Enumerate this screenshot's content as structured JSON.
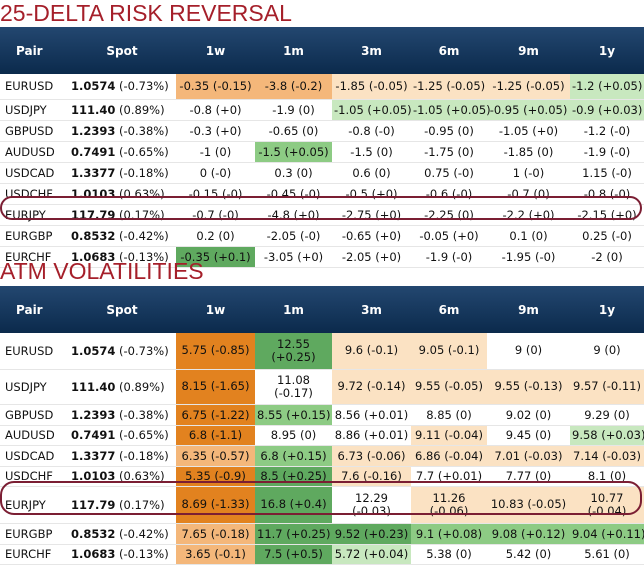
{
  "colors": {
    "title": "#a51f2a",
    "header_bg": "#0b2a4c",
    "highlight_ring": "#7b1e33",
    "orange_dark": "#e2821f",
    "orange_mid": "#f4b77a",
    "orange_light": "#fbe2c3",
    "green_dark": "#5fa95f",
    "green_mid": "#8dcb84",
    "green_light": "#c8e8bf"
  },
  "chart_data": [
    {
      "type": "table",
      "title": "25-DELTA RISK REVERSAL",
      "columns": [
        "Pair",
        "Spot",
        "1w",
        "1m",
        "3m",
        "6m",
        "9m",
        "1y"
      ],
      "rows": [
        {
          "pair": "EURUSD",
          "spot": "1.0574",
          "spot_chg": "(-0.73%)",
          "cells": [
            "-0.35 (-0.15)",
            "-3.8 (-0.2)",
            "-1.85 (-0.05)",
            "-1.25 (-0.05)",
            "-1.25 (-0.05)",
            "-1.2 (+0.05)"
          ],
          "heat": [
            "om",
            "om",
            "ol",
            "ol",
            "ol",
            "gl"
          ]
        },
        {
          "pair": "USDJPY",
          "spot": "111.40",
          "spot_chg": "(0.89%)",
          "cells": [
            "-0.8 (+0)",
            "-1.9 (0)",
            "-1.05 (+0.05)",
            "-1.05 (+0.05)",
            "-0.95 (+0.05)",
            "-0.9 (+0.03)"
          ],
          "heat": [
            "",
            "",
            "gl",
            "gl",
            "gl",
            "gl"
          ]
        },
        {
          "pair": "GBPUSD",
          "spot": "1.2393",
          "spot_chg": "(-0.38%)",
          "cells": [
            "-0.3 (+0)",
            "-0.65 (0)",
            "-0.8 (-0)",
            "-0.95 (0)",
            "-1.05 (+0)",
            "-1.2 (-0)"
          ],
          "heat": [
            "",
            "",
            "",
            "",
            "",
            ""
          ]
        },
        {
          "pair": "AUDUSD",
          "spot": "0.7491",
          "spot_chg": "(-0.65%)",
          "cells": [
            "-1 (0)",
            "-1.5 (+0.05)",
            "-1.5 (0)",
            "-1.75 (0)",
            "-1.85 (0)",
            "-1.9 (-0)"
          ],
          "heat": [
            "",
            "gm",
            "",
            "",
            "",
            ""
          ]
        },
        {
          "pair": "USDCAD",
          "spot": "1.3377",
          "spot_chg": "(-0.18%)",
          "cells": [
            "0 (-0)",
            "0.3 (0)",
            "0.6 (0)",
            "0.75 (-0)",
            "1 (-0)",
            "1.15 (-0)"
          ],
          "heat": [
            "",
            "",
            "",
            "",
            "",
            ""
          ]
        },
        {
          "pair": "USDCHF",
          "spot": "1.0103",
          "spot_chg": "(0.63%)",
          "cells": [
            "-0.15 (-0)",
            "-0.45 (-0)",
            "-0.5 (+0)",
            "-0.6 (-0)",
            "-0.7 (0)",
            "-0.8 (-0)"
          ],
          "heat": [
            "",
            "",
            "",
            "",
            "",
            ""
          ]
        },
        {
          "pair": "EURJPY",
          "spot": "117.79",
          "spot_chg": "(0.17%)",
          "cells": [
            "-0.7 (-0)",
            "-4.8 (+0)",
            "-2.75 (+0)",
            "-2.25 (0)",
            "-2.2 (+0)",
            "-2.15 (+0)"
          ],
          "heat": [
            "",
            "",
            "",
            "",
            "",
            ""
          ]
        },
        {
          "pair": "EURGBP",
          "spot": "0.8532",
          "spot_chg": "(-0.42%)",
          "cells": [
            "0.2 (0)",
            "-2.05 (-0)",
            "-0.65 (+0)",
            "-0.05 (+0)",
            "0.1 (0)",
            "0.25 (-0)"
          ],
          "heat": [
            "",
            "",
            "",
            "",
            "",
            ""
          ]
        },
        {
          "pair": "EURCHF",
          "spot": "1.0683",
          "spot_chg": "(-0.13%)",
          "cells": [
            "-0.35 (+0.1)",
            "-3.05 (+0)",
            "-2.05 (+0)",
            "-1.9 (-0)",
            "-1.95 (-0)",
            "-2 (0)"
          ],
          "heat": [
            "gd",
            "",
            "",
            "",
            "",
            ""
          ]
        }
      ]
    },
    {
      "type": "table",
      "title": "ATM VOLATILITIES",
      "columns": [
        "Pair",
        "Spot",
        "1w",
        "1m",
        "3m",
        "6m",
        "9m",
        "1y"
      ],
      "rows": [
        {
          "pair": "EURUSD",
          "spot": "1.0574",
          "spot_chg": "(-0.73%)",
          "cells": [
            "5.75 (-0.85)",
            "12.55 (+0.25)",
            "9.6 (-0.1)",
            "9.05 (-0.1)",
            "9 (0)",
            "9 (0)"
          ],
          "heat": [
            "od",
            "gd",
            "ol",
            "ol",
            "",
            ""
          ]
        },
        {
          "pair": "USDJPY",
          "spot": "111.40",
          "spot_chg": "(0.89%)",
          "cells": [
            "8.15 (-1.65)",
            "11.08 (-0.17)",
            "9.72 (-0.14)",
            "9.55 (-0.05)",
            "9.55 (-0.13)",
            "9.57 (-0.11)"
          ],
          "heat": [
            "od",
            "",
            "ol",
            "ol",
            "ol",
            "ol"
          ]
        },
        {
          "pair": "GBPUSD",
          "spot": "1.2393",
          "spot_chg": "(-0.38%)",
          "cells": [
            "6.75 (-1.22)",
            "8.55 (+0.15)",
            "8.56 (+0.01)",
            "8.85 (0)",
            "9.02 (0)",
            "9.29 (0)"
          ],
          "heat": [
            "od",
            "gm",
            "",
            "",
            "",
            ""
          ]
        },
        {
          "pair": "AUDUSD",
          "spot": "0.7491",
          "spot_chg": "(-0.65%)",
          "cells": [
            "6.8 (-1.1)",
            "8.95 (0)",
            "8.86 (+0.01)",
            "9.11 (-0.04)",
            "9.45 (0)",
            "9.58 (+0.03)"
          ],
          "heat": [
            "od",
            "",
            "",
            "ol",
            "",
            "gl"
          ]
        },
        {
          "pair": "USDCAD",
          "spot": "1.3377",
          "spot_chg": "(-0.18%)",
          "cells": [
            "6.35 (-0.57)",
            "6.8 (+0.15)",
            "6.73 (-0.06)",
            "6.86 (-0.04)",
            "7.01 (-0.03)",
            "7.14 (-0.03)"
          ],
          "heat": [
            "om",
            "gm",
            "ol",
            "ol",
            "ol",
            "ol"
          ]
        },
        {
          "pair": "USDCHF",
          "spot": "1.0103",
          "spot_chg": "(0.63%)",
          "cells": [
            "5.35 (-0.9)",
            "8.5 (+0.25)",
            "7.6 (-0.16)",
            "7.7 (+0.01)",
            "7.77 (0)",
            "8.1 (0)"
          ],
          "heat": [
            "od",
            "gd",
            "ol",
            "",
            "",
            ""
          ]
        },
        {
          "pair": "EURJPY",
          "spot": "117.79",
          "spot_chg": "(0.17%)",
          "cells": [
            "8.69 (-1.33)",
            "16.8 (+0.4)",
            "12.29 (-0.03)",
            "11.26 (-0.06)",
            "10.83 (-0.05)",
            "10.77 (-0.04)"
          ],
          "heat": [
            "od",
            "gd",
            "",
            "ol",
            "ol",
            "ol"
          ]
        },
        {
          "pair": "EURGBP",
          "spot": "0.8532",
          "spot_chg": "(-0.42%)",
          "cells": [
            "7.65 (-0.18)",
            "11.7 (+0.25)",
            "9.52 (+0.23)",
            "9.1 (+0.08)",
            "9.08 (+0.12)",
            "9.04 (+0.11)"
          ],
          "heat": [
            "om",
            "gd",
            "gd",
            "gm",
            "gm",
            "gm"
          ]
        },
        {
          "pair": "EURCHF",
          "spot": "1.0683",
          "spot_chg": "(-0.13%)",
          "cells": [
            "3.65 (-0.1)",
            "7.5 (+0.5)",
            "5.72 (+0.04)",
            "5.38 (0)",
            "5.42 (0)",
            "5.61 (0)"
          ],
          "heat": [
            "om",
            "gd",
            "gl",
            "",
            "",
            ""
          ]
        }
      ]
    }
  ]
}
